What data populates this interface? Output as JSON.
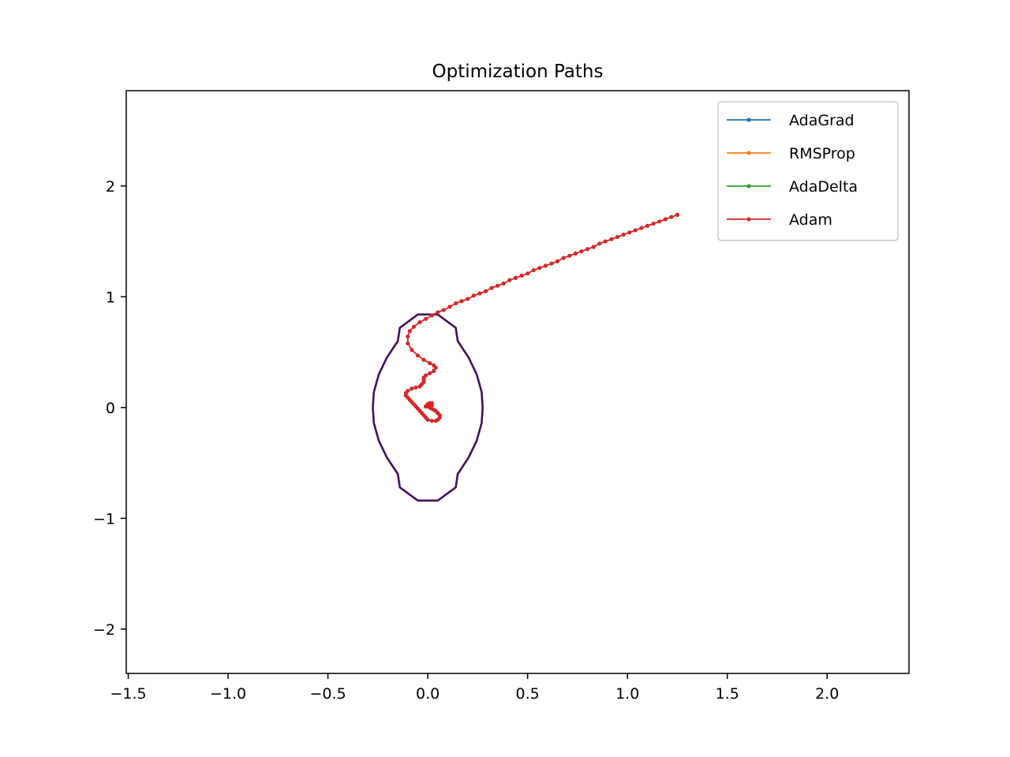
{
  "chart_data": {
    "type": "line",
    "title": "Optimization Paths",
    "xlabel": "",
    "ylabel": "",
    "xlim": [
      -1.51,
      2.41
    ],
    "ylim": [
      -2.4,
      2.86
    ],
    "xticks": [
      -1.5,
      -1.0,
      -0.5,
      0.0,
      0.5,
      1.0,
      1.5,
      2.0
    ],
    "xtick_labels": [
      "−1.5",
      "−1.0",
      "−0.5",
      "0.0",
      "0.5",
      "1.0",
      "1.5",
      "2.0"
    ],
    "yticks": [
      -2,
      -1,
      0,
      1,
      2
    ],
    "ytick_labels": [
      "−2",
      "−1",
      "0",
      "1",
      "2"
    ],
    "grid": false,
    "legend_position": "top-right",
    "contour": {
      "color": "#440f5d",
      "points": [
        [
          -0.275,
          0.0
        ],
        [
          -0.27,
          -0.14
        ],
        [
          -0.245,
          -0.3
        ],
        [
          -0.205,
          -0.45
        ],
        [
          -0.15,
          -0.6
        ],
        [
          -0.14,
          -0.72
        ],
        [
          -0.05,
          -0.84
        ],
        [
          0.05,
          -0.84
        ],
        [
          0.14,
          -0.72
        ],
        [
          0.15,
          -0.6
        ],
        [
          0.205,
          -0.45
        ],
        [
          0.245,
          -0.3
        ],
        [
          0.27,
          -0.14
        ],
        [
          0.275,
          0.0
        ],
        [
          0.27,
          0.14
        ],
        [
          0.245,
          0.3
        ],
        [
          0.205,
          0.45
        ],
        [
          0.15,
          0.6
        ],
        [
          0.14,
          0.72
        ],
        [
          0.05,
          0.84
        ],
        [
          -0.05,
          0.84
        ],
        [
          -0.14,
          0.72
        ],
        [
          -0.15,
          0.6
        ],
        [
          -0.205,
          0.45
        ],
        [
          -0.245,
          0.3
        ],
        [
          -0.27,
          0.14
        ],
        [
          -0.275,
          0.0
        ]
      ]
    },
    "series": [
      {
        "name": "AdaGrad",
        "color": "#1f77b4",
        "points": [
          [
            1.25,
            1.74
          ]
        ]
      },
      {
        "name": "RMSProp",
        "color": "#ff7f0e",
        "points": [
          [
            1.25,
            1.74
          ]
        ]
      },
      {
        "name": "AdaDelta",
        "color": "#2ca02c",
        "points": [
          [
            1.25,
            1.74
          ]
        ]
      },
      {
        "name": "Adam",
        "color": "#d62728",
        "points": [
          [
            1.25,
            1.74
          ],
          [
            1.22,
            1.72
          ],
          [
            1.19,
            1.7
          ],
          [
            1.16,
            1.68
          ],
          [
            1.13,
            1.66
          ],
          [
            1.1,
            1.64
          ],
          [
            1.07,
            1.62
          ],
          [
            1.04,
            1.6
          ],
          [
            1.01,
            1.58
          ],
          [
            0.98,
            1.56
          ],
          [
            0.95,
            1.54
          ],
          [
            0.92,
            1.52
          ],
          [
            0.89,
            1.5
          ],
          [
            0.86,
            1.48
          ],
          [
            0.83,
            1.45
          ],
          [
            0.8,
            1.43
          ],
          [
            0.77,
            1.41
          ],
          [
            0.74,
            1.39
          ],
          [
            0.71,
            1.37
          ],
          [
            0.68,
            1.35
          ],
          [
            0.65,
            1.32
          ],
          [
            0.62,
            1.3
          ],
          [
            0.59,
            1.28
          ],
          [
            0.56,
            1.26
          ],
          [
            0.53,
            1.24
          ],
          [
            0.5,
            1.21
          ],
          [
            0.47,
            1.19
          ],
          [
            0.44,
            1.17
          ],
          [
            0.41,
            1.15
          ],
          [
            0.38,
            1.12
          ],
          [
            0.35,
            1.1
          ],
          [
            0.32,
            1.08
          ],
          [
            0.29,
            1.05
          ],
          [
            0.26,
            1.03
          ],
          [
            0.23,
            1.01
          ],
          [
            0.2,
            0.98
          ],
          [
            0.17,
            0.96
          ],
          [
            0.14,
            0.94
          ],
          [
            0.11,
            0.91
          ],
          [
            0.08,
            0.88
          ],
          [
            0.05,
            0.86
          ],
          [
            0.02,
            0.83
          ],
          [
            -0.01,
            0.8
          ],
          [
            -0.04,
            0.77
          ],
          [
            -0.07,
            0.73
          ],
          [
            -0.09,
            0.69
          ],
          [
            -0.1,
            0.64
          ],
          [
            -0.1,
            0.58
          ],
          [
            -0.08,
            0.52
          ],
          [
            -0.05,
            0.47
          ],
          [
            -0.02,
            0.43
          ],
          [
            0.01,
            0.4
          ],
          [
            0.03,
            0.38
          ],
          [
            0.04,
            0.36
          ],
          [
            0.03,
            0.33
          ],
          [
            0.01,
            0.31
          ],
          [
            -0.01,
            0.29
          ],
          [
            -0.02,
            0.27
          ],
          [
            -0.02,
            0.25
          ],
          [
            -0.02,
            0.23
          ],
          [
            -0.03,
            0.21
          ],
          [
            -0.04,
            0.19
          ],
          [
            -0.06,
            0.18
          ],
          [
            -0.08,
            0.17
          ],
          [
            -0.1,
            0.15
          ],
          [
            -0.11,
            0.13
          ],
          [
            -0.11,
            0.11
          ],
          [
            -0.1,
            0.09
          ],
          [
            -0.09,
            0.07
          ],
          [
            -0.08,
            0.05
          ],
          [
            -0.07,
            0.03
          ],
          [
            -0.06,
            0.01
          ],
          [
            -0.05,
            -0.01
          ],
          [
            -0.04,
            -0.03
          ],
          [
            -0.03,
            -0.05
          ],
          [
            -0.02,
            -0.07
          ],
          [
            -0.01,
            -0.09
          ],
          [
            0.0,
            -0.11
          ],
          [
            0.02,
            -0.12
          ],
          [
            0.04,
            -0.12
          ],
          [
            0.05,
            -0.11
          ],
          [
            0.06,
            -0.09
          ],
          [
            0.06,
            -0.07
          ],
          [
            0.05,
            -0.05
          ],
          [
            0.04,
            -0.03
          ],
          [
            0.03,
            -0.02
          ],
          [
            0.02,
            -0.01
          ],
          [
            0.01,
            0.0
          ],
          [
            0.0,
            0.01
          ],
          [
            -0.01,
            0.01
          ],
          [
            0.0,
            0.02
          ],
          [
            0.01,
            0.02
          ],
          [
            0.02,
            0.02
          ],
          [
            0.01,
            0.03
          ],
          [
            0.0,
            0.03
          ],
          [
            0.01,
            0.04
          ],
          [
            0.02,
            0.04
          ],
          [
            0.01,
            0.03
          ],
          [
            0.0,
            0.02
          ],
          [
            0.01,
            0.02
          ]
        ]
      }
    ]
  }
}
